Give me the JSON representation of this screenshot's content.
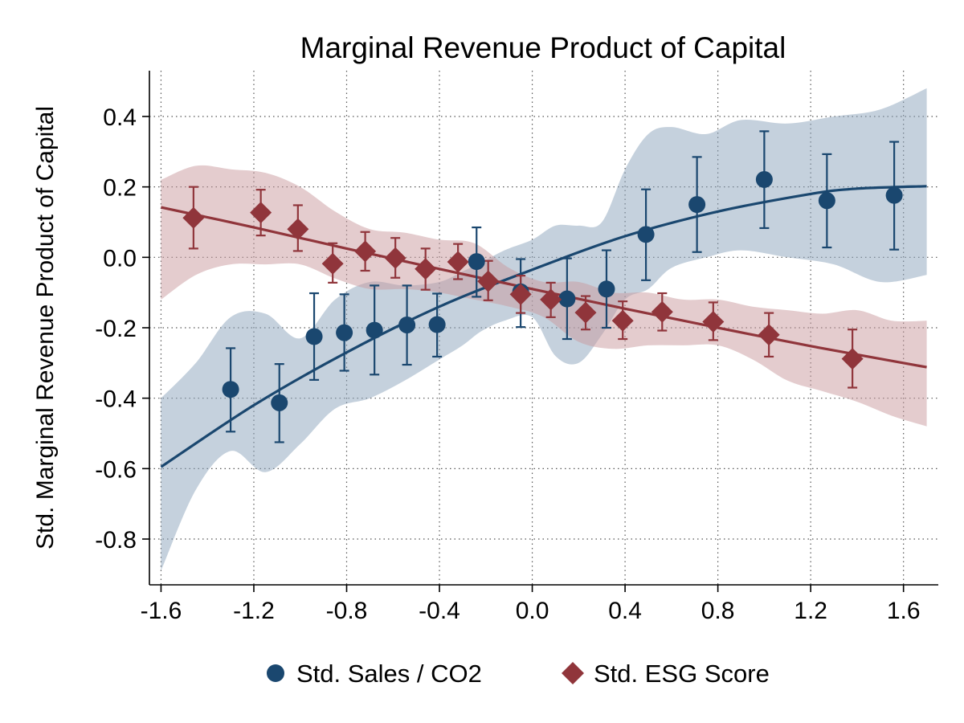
{
  "chart_data": {
    "type": "scatter",
    "title": "Marginal Revenue Product of Capital",
    "xlabel": "",
    "ylabel": "Std. Marginal Revenue Product of Capital",
    "xlim": [
      -1.65,
      1.75
    ],
    "ylim": [
      -0.93,
      0.53
    ],
    "x_ticks": [
      -1.6,
      -1.2,
      -0.8,
      -0.4,
      0.0,
      0.4,
      0.8,
      1.2,
      1.6
    ],
    "x_tick_labels": [
      "-1.6",
      "-1.2",
      "-0.8",
      "-0.4",
      "0.0",
      "0.4",
      "0.8",
      "1.2",
      "1.6"
    ],
    "y_ticks": [
      0.4,
      0.2,
      0.0,
      -0.2,
      -0.4,
      -0.6,
      -0.8
    ],
    "y_tick_labels": [
      "0.4",
      "0.2",
      "0.0",
      "-0.2",
      "-0.4",
      "-0.6",
      "-0.8"
    ],
    "grid": true,
    "legend_position": "bottom",
    "series": [
      {
        "name": "Std. Sales / CO2",
        "marker": "circle",
        "color": "#1a476f",
        "band_color": "#8ca3bc",
        "points": [
          {
            "x": -1.3,
            "y": -0.375,
            "lo": -0.495,
            "hi": -0.258
          },
          {
            "x": -1.09,
            "y": -0.413,
            "lo": -0.525,
            "hi": -0.303
          },
          {
            "x": -0.94,
            "y": -0.225,
            "lo": -0.348,
            "hi": -0.102
          },
          {
            "x": -0.81,
            "y": -0.214,
            "lo": -0.322,
            "hi": -0.105
          },
          {
            "x": -0.68,
            "y": -0.207,
            "lo": -0.333,
            "hi": -0.08
          },
          {
            "x": -0.54,
            "y": -0.192,
            "lo": -0.305,
            "hi": -0.08
          },
          {
            "x": -0.41,
            "y": -0.191,
            "lo": -0.282,
            "hi": -0.103
          },
          {
            "x": -0.24,
            "y": -0.012,
            "lo": -0.112,
            "hi": 0.085
          },
          {
            "x": -0.05,
            "y": -0.098,
            "lo": -0.198,
            "hi": -0.005
          },
          {
            "x": 0.15,
            "y": -0.118,
            "lo": -0.232,
            "hi": -0.003
          },
          {
            "x": 0.32,
            "y": -0.09,
            "lo": -0.2,
            "hi": 0.02
          },
          {
            "x": 0.49,
            "y": 0.065,
            "lo": -0.065,
            "hi": 0.193
          },
          {
            "x": 0.71,
            "y": 0.15,
            "lo": 0.015,
            "hi": 0.285
          },
          {
            "x": 1.0,
            "y": 0.221,
            "lo": 0.083,
            "hi": 0.358
          },
          {
            "x": 1.27,
            "y": 0.161,
            "lo": 0.028,
            "hi": 0.293
          },
          {
            "x": 1.56,
            "y": 0.176,
            "lo": 0.022,
            "hi": 0.328
          }
        ],
        "fit": {
          "x": [
            -1.6,
            -1.2,
            -0.8,
            -0.4,
            0.0,
            0.4,
            0.8,
            1.2,
            1.4,
            1.7
          ],
          "y": [
            -0.595,
            -0.42,
            -0.27,
            -0.14,
            -0.035,
            0.06,
            0.13,
            0.18,
            0.195,
            0.202
          ]
        },
        "band": {
          "x": [
            -1.6,
            -1.45,
            -1.3,
            -1.15,
            -1.0,
            -0.85,
            -0.7,
            -0.55,
            -0.4,
            -0.3,
            -0.22,
            -0.12,
            0.0,
            0.1,
            0.2,
            0.3,
            0.4,
            0.5,
            0.6,
            0.75,
            0.9,
            1.1,
            1.3,
            1.5,
            1.7
          ],
          "upper": [
            -0.4,
            -0.3,
            -0.17,
            -0.16,
            -0.23,
            -0.12,
            -0.07,
            -0.08,
            -0.07,
            -0.04,
            -0.015,
            0.02,
            0.05,
            0.09,
            0.09,
            0.1,
            0.25,
            0.35,
            0.37,
            0.35,
            0.39,
            0.38,
            0.4,
            0.42,
            0.48
          ],
          "lower": [
            -0.89,
            -0.66,
            -0.55,
            -0.61,
            -0.53,
            -0.43,
            -0.4,
            -0.35,
            -0.29,
            -0.25,
            -0.21,
            -0.18,
            -0.17,
            -0.28,
            -0.3,
            -0.22,
            -0.12,
            -0.09,
            -0.03,
            0.0,
            0.02,
            0.0,
            -0.02,
            -0.07,
            -0.05
          ]
        }
      },
      {
        "name": "Std. ESG Score",
        "marker": "diamond",
        "color": "#90353b",
        "band_color": "#c99a9e",
        "points": [
          {
            "x": -1.46,
            "y": 0.112,
            "lo": 0.025,
            "hi": 0.2
          },
          {
            "x": -1.17,
            "y": 0.127,
            "lo": 0.062,
            "hi": 0.192
          },
          {
            "x": -1.01,
            "y": 0.08,
            "lo": 0.018,
            "hi": 0.148
          },
          {
            "x": -0.86,
            "y": -0.018,
            "lo": -0.072,
            "hi": 0.04
          },
          {
            "x": -0.72,
            "y": 0.017,
            "lo": -0.038,
            "hi": 0.072
          },
          {
            "x": -0.59,
            "y": -0.002,
            "lo": -0.058,
            "hi": 0.055
          },
          {
            "x": -0.46,
            "y": -0.033,
            "lo": -0.092,
            "hi": 0.025
          },
          {
            "x": -0.32,
            "y": -0.013,
            "lo": -0.062,
            "hi": 0.038
          },
          {
            "x": -0.19,
            "y": -0.068,
            "lo": -0.122,
            "hi": -0.01
          },
          {
            "x": -0.05,
            "y": -0.105,
            "lo": -0.158,
            "hi": -0.052
          },
          {
            "x": 0.08,
            "y": -0.12,
            "lo": -0.17,
            "hi": -0.072
          },
          {
            "x": 0.23,
            "y": -0.157,
            "lo": -0.205,
            "hi": -0.11
          },
          {
            "x": 0.39,
            "y": -0.18,
            "lo": -0.232,
            "hi": -0.125
          },
          {
            "x": 0.56,
            "y": -0.155,
            "lo": -0.208,
            "hi": -0.102
          },
          {
            "x": 0.78,
            "y": -0.183,
            "lo": -0.235,
            "hi": -0.128
          },
          {
            "x": 1.02,
            "y": -0.22,
            "lo": -0.282,
            "hi": -0.158
          },
          {
            "x": 1.38,
            "y": -0.288,
            "lo": -0.37,
            "hi": -0.205
          }
        ],
        "fit": {
          "x": [
            -1.6,
            -1.2,
            -0.8,
            -0.4,
            0.0,
            0.4,
            0.8,
            1.2,
            1.7
          ],
          "y": [
            0.142,
            0.085,
            0.025,
            -0.033,
            -0.09,
            -0.146,
            -0.2,
            -0.252,
            -0.312
          ]
        },
        "band": {
          "x": [
            -1.6,
            -1.45,
            -1.3,
            -1.15,
            -1.0,
            -0.85,
            -0.7,
            -0.55,
            -0.4,
            -0.25,
            -0.1,
            0.05,
            0.2,
            0.35,
            0.5,
            0.65,
            0.8,
            0.95,
            1.1,
            1.25,
            1.4,
            1.55,
            1.7
          ],
          "upper": [
            0.22,
            0.26,
            0.25,
            0.24,
            0.2,
            0.13,
            0.08,
            0.07,
            0.05,
            0.04,
            -0.03,
            -0.07,
            -0.07,
            -0.1,
            -0.1,
            -0.12,
            -0.12,
            -0.14,
            -0.15,
            -0.16,
            -0.15,
            -0.18,
            -0.18
          ],
          "lower": [
            -0.12,
            -0.05,
            -0.02,
            -0.02,
            -0.02,
            -0.06,
            -0.09,
            -0.09,
            -0.1,
            -0.12,
            -0.14,
            -0.17,
            -0.24,
            -0.26,
            -0.25,
            -0.25,
            -0.25,
            -0.29,
            -0.35,
            -0.38,
            -0.41,
            -0.45,
            -0.48
          ]
        }
      }
    ]
  }
}
